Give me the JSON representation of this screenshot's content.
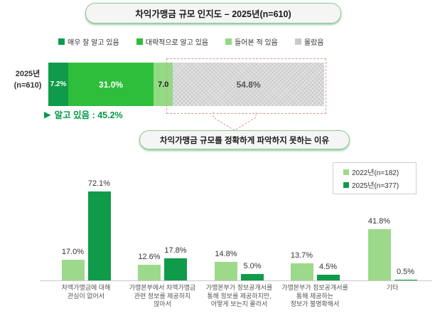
{
  "colors": {
    "dark_green": "#0f9b4a",
    "bright_green": "#2ebe3c",
    "light_green": "#93da84",
    "light_green_2022": "#9cd98b",
    "gray_unknown": "#c9c9c9",
    "dashed_callout_red": "#d89b94",
    "pill_border_green": "#8bc993",
    "annotation_green": "#009a47"
  },
  "chart_data": [
    {
      "type": "stacked_bar_horizontal",
      "title": "차익가맹금 규모 인지도 – 2025년(n=610)",
      "row_label": [
        "2025년",
        "(n=610)"
      ],
      "categories": [
        "매우 잘 알고 있음",
        "대략적으로 알고 있음",
        "들어본 적 있음",
        "몰랐음"
      ],
      "values": [
        7.2,
        31.0,
        7.0,
        54.8
      ],
      "value_labels": [
        "7.2%",
        "31.0%",
        "7.0",
        "54.8%"
      ],
      "colors": [
        "#0f9b4a",
        "#2ebe3c",
        "#93da84",
        "hatch"
      ],
      "label_colors": [
        "#ffffff",
        "#ffffff",
        "#222222",
        "#555555"
      ],
      "legend_colors": [
        "#0f9b4a",
        "#2ebe3c",
        "#93da84",
        "#c9c9c9"
      ],
      "annotation_marker": "▶",
      "annotation": "알고 있음 : 45.2%",
      "xlim": [
        0,
        100
      ],
      "legend_position": "top",
      "grid": false
    },
    {
      "type": "grouped_bar",
      "title": "차익가맹금 규모를 정확하게 파악하지 못하는 이유",
      "categories": [
        "차액가맹금에 대해\n관심이 없어서",
        "가맹본부에서 차액가맹금\n관련 정보를 제공하지\n않아서",
        "가맹본부가 정보공개서를\n통해 정보를 제공하지만,\n어떻게 보는지 몰라서",
        "가맹본부가 정보공개서를\n통해 제공하는\n정보가 불명확해서",
        "기타"
      ],
      "series": [
        {
          "name": "2022년(n=182)",
          "color": "#9cd98b",
          "values": [
            17.0,
            12.6,
            14.8,
            13.7,
            41.8
          ]
        },
        {
          "name": "2025년(n=377)",
          "color": "#0f9b4a",
          "values": [
            72.1,
            17.8,
            5.0,
            4.5,
            0.5
          ]
        }
      ],
      "unit": "%",
      "ylim": [
        0,
        80
      ],
      "legend_position": "top-right",
      "grid": false
    }
  ]
}
